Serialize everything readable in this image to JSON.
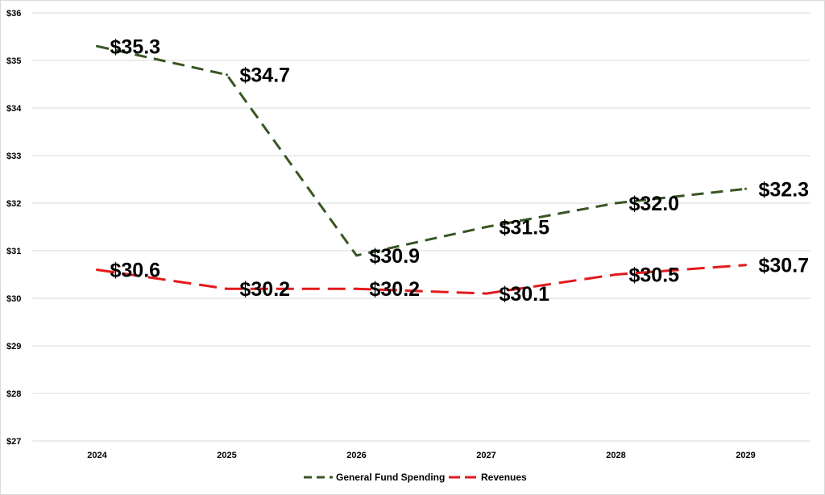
{
  "chart_data": {
    "type": "line",
    "title": "",
    "xlabel": "",
    "ylabel": "",
    "categories": [
      "2024",
      "2025",
      "2026",
      "2027",
      "2028",
      "2029"
    ],
    "ylim": [
      27,
      36
    ],
    "y_ticks": [
      27,
      28,
      29,
      30,
      31,
      32,
      33,
      34,
      35,
      36
    ],
    "y_tick_labels": [
      "$27",
      "$28",
      "$29",
      "$30",
      "$31",
      "$32",
      "$33",
      "$34",
      "$35",
      "$36"
    ],
    "grid": "horizontal",
    "legend_position": "bottom",
    "series": [
      {
        "name": "General Fund Spending",
        "values": [
          35.3,
          34.7,
          30.9,
          31.5,
          32.0,
          32.3
        ],
        "labels": [
          "$35.3",
          "$34.7",
          "$30.9",
          "$31.5",
          "$32.0",
          "$32.3"
        ],
        "color": "#375623",
        "dash": "dashed"
      },
      {
        "name": "Revenues",
        "values": [
          30.6,
          30.2,
          30.2,
          30.1,
          30.5,
          30.7
        ],
        "labels": [
          "$30.6",
          "$30.2",
          "$30.2",
          "$30.1",
          "$30.5",
          "$30.7"
        ],
        "color": "#e31a1c",
        "dash": "long-dash"
      }
    ]
  }
}
